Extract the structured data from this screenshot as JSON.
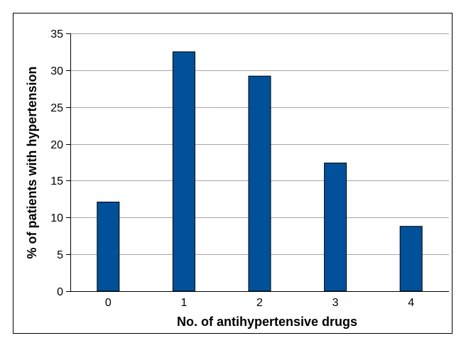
{
  "chart_data": {
    "type": "bar",
    "title": "",
    "xlabel": "No. of antihypertensive drugs",
    "ylabel": "% of patients with hypertension",
    "categories": [
      "0",
      "1",
      "2",
      "3",
      "4"
    ],
    "values": [
      12.1,
      32.5,
      29.2,
      17.4,
      8.8
    ],
    "ylim": [
      0,
      35
    ],
    "yticks": [
      "0",
      "5",
      "10",
      "15",
      "20",
      "25",
      "30",
      "35"
    ],
    "grid": true,
    "bar_color": "#00519a",
    "grid_color": "#a6a6a6"
  }
}
